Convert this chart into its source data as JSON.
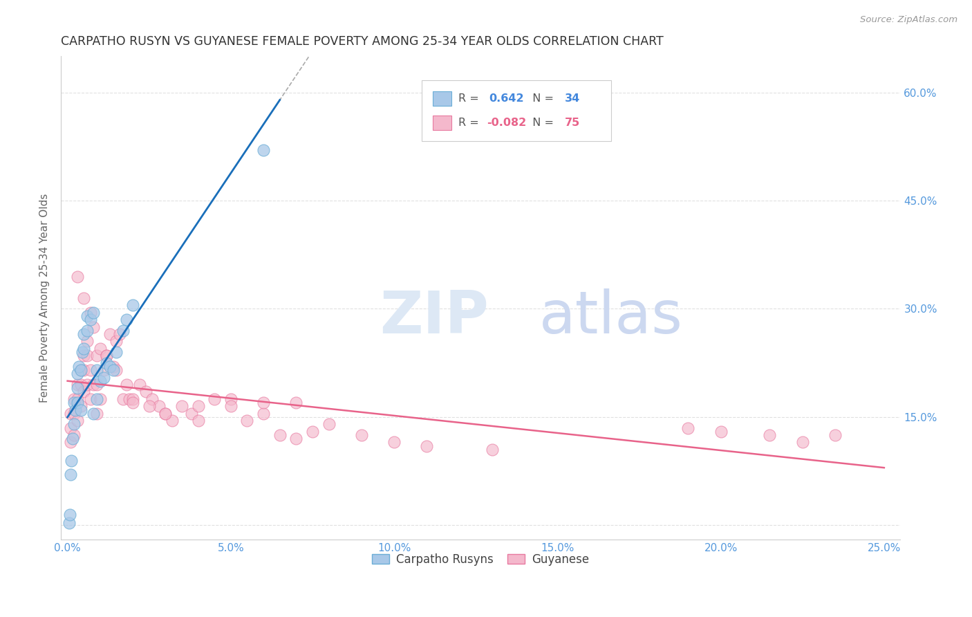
{
  "title": "CARPATHO RUSYN VS GUYANESE FEMALE POVERTY AMONG 25-34 YEAR OLDS CORRELATION CHART",
  "source": "Source: ZipAtlas.com",
  "ylabel": "Female Poverty Among 25-34 Year Olds",
  "xlim": [
    -0.002,
    0.255
  ],
  "ylim": [
    -0.02,
    0.65
  ],
  "xticks": [
    0.0,
    0.05,
    0.1,
    0.15,
    0.2,
    0.25
  ],
  "yticks_left": [
    0.15,
    0.3,
    0.45,
    0.6
  ],
  "xticklabels": [
    "0.0%",
    "5.0%",
    "10.0%",
    "15.0%",
    "20.0%",
    "25.0%"
  ],
  "yticklabels": [
    "15.0%",
    "30.0%",
    "45.0%",
    "60.0%"
  ],
  "blue_scatter_color": "#a8c8e8",
  "blue_edge_color": "#6baed6",
  "pink_scatter_color": "#f4b8cc",
  "pink_edge_color": "#e87aa0",
  "blue_line_color": "#1a6fba",
  "pink_line_color": "#e8638a",
  "tick_label_color": "#5599dd",
  "grid_color": "#e0e0e0",
  "title_color": "#333333",
  "source_color": "#999999",
  "ylabel_color": "#666666",
  "watermark_zip_color": "#dde8f5",
  "watermark_atlas_color": "#ccd8f0",
  "legend_edge_color": "#cccccc",
  "legend_text_color": "#555555",
  "legend_blue_value_color": "#4488dd",
  "legend_pink_value_color": "#e8638a",
  "carpatho_x": [
    0.0005,
    0.0008,
    0.001,
    0.0012,
    0.0015,
    0.002,
    0.002,
    0.0025,
    0.003,
    0.003,
    0.003,
    0.0035,
    0.004,
    0.004,
    0.0045,
    0.005,
    0.005,
    0.006,
    0.006,
    0.007,
    0.008,
    0.008,
    0.009,
    0.009,
    0.01,
    0.011,
    0.012,
    0.013,
    0.014,
    0.015,
    0.017,
    0.018,
    0.02,
    0.06
  ],
  "carpatho_y": [
    0.003,
    0.015,
    0.07,
    0.09,
    0.12,
    0.14,
    0.17,
    0.16,
    0.17,
    0.19,
    0.21,
    0.22,
    0.215,
    0.16,
    0.24,
    0.245,
    0.265,
    0.27,
    0.29,
    0.285,
    0.295,
    0.155,
    0.175,
    0.215,
    0.2,
    0.205,
    0.225,
    0.22,
    0.215,
    0.24,
    0.27,
    0.285,
    0.305,
    0.52
  ],
  "guyanese_x": [
    0.001,
    0.001,
    0.001,
    0.002,
    0.002,
    0.002,
    0.003,
    0.003,
    0.003,
    0.004,
    0.004,
    0.004,
    0.005,
    0.005,
    0.005,
    0.006,
    0.006,
    0.006,
    0.007,
    0.007,
    0.008,
    0.008,
    0.009,
    0.009,
    0.01,
    0.01,
    0.011,
    0.012,
    0.013,
    0.014,
    0.015,
    0.016,
    0.017,
    0.018,
    0.019,
    0.02,
    0.022,
    0.024,
    0.026,
    0.028,
    0.03,
    0.032,
    0.035,
    0.038,
    0.04,
    0.045,
    0.05,
    0.055,
    0.06,
    0.065,
    0.07,
    0.075,
    0.08,
    0.09,
    0.1,
    0.11,
    0.003,
    0.005,
    0.007,
    0.009,
    0.012,
    0.015,
    0.02,
    0.025,
    0.03,
    0.04,
    0.05,
    0.06,
    0.07,
    0.13,
    0.19,
    0.2,
    0.215,
    0.225,
    0.235
  ],
  "guyanese_y": [
    0.155,
    0.135,
    0.115,
    0.175,
    0.155,
    0.125,
    0.195,
    0.175,
    0.145,
    0.215,
    0.195,
    0.165,
    0.235,
    0.215,
    0.185,
    0.255,
    0.235,
    0.195,
    0.215,
    0.175,
    0.275,
    0.195,
    0.235,
    0.195,
    0.245,
    0.175,
    0.215,
    0.235,
    0.265,
    0.22,
    0.255,
    0.265,
    0.175,
    0.195,
    0.175,
    0.175,
    0.195,
    0.185,
    0.175,
    0.165,
    0.155,
    0.145,
    0.165,
    0.155,
    0.165,
    0.175,
    0.175,
    0.145,
    0.155,
    0.125,
    0.12,
    0.13,
    0.14,
    0.125,
    0.115,
    0.11,
    0.345,
    0.315,
    0.295,
    0.155,
    0.235,
    0.215,
    0.17,
    0.165,
    0.155,
    0.145,
    0.165,
    0.17,
    0.17,
    0.105,
    0.135,
    0.13,
    0.125,
    0.115,
    0.125
  ]
}
